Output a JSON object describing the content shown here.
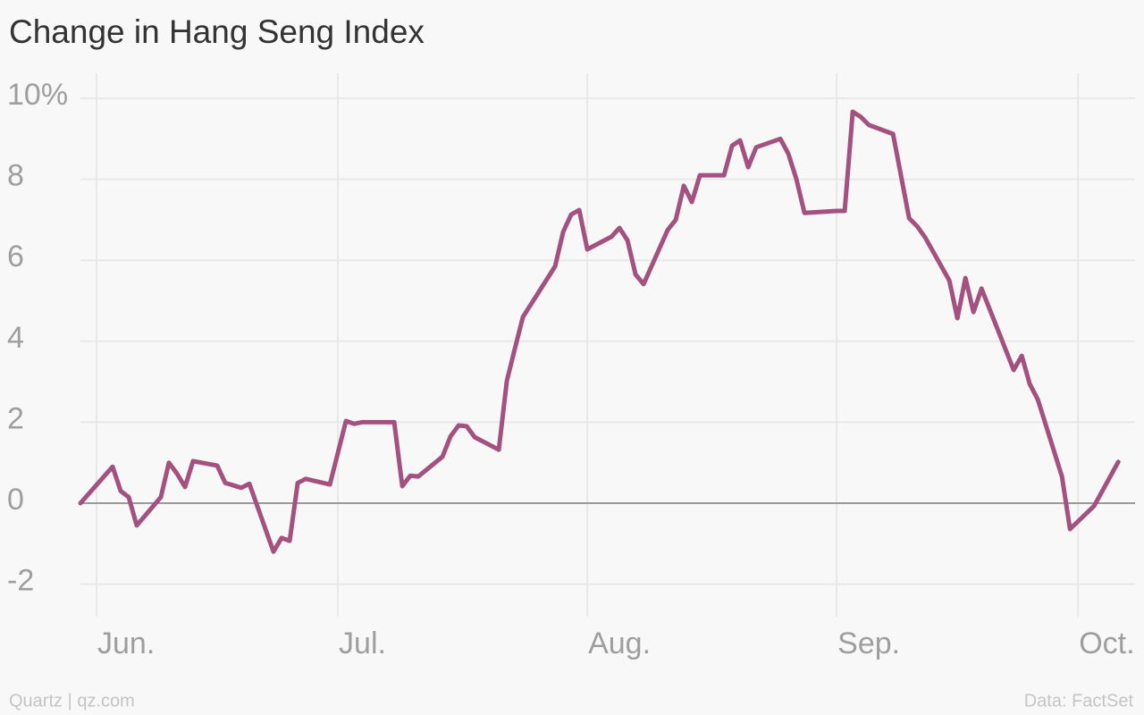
{
  "chart_data": {
    "type": "line",
    "title": "Change in Hang Seng Index",
    "x": [
      -2,
      2,
      3,
      4,
      5,
      8,
      9,
      10,
      11,
      12,
      15,
      16,
      18,
      19,
      22,
      23,
      24,
      25,
      26,
      29,
      31,
      32,
      33,
      37,
      38,
      39,
      40,
      43,
      44,
      45,
      46,
      47,
      50,
      51,
      52,
      53,
      57,
      58,
      59,
      60,
      61,
      64,
      65,
      66,
      67,
      68,
      71,
      72,
      73,
      74,
      75,
      78,
      79,
      80,
      81,
      82,
      85,
      86,
      87,
      88,
      92,
      93,
      94,
      95,
      96,
      99,
      101,
      102,
      103,
      106,
      107,
      108,
      109,
      110,
      114,
      115,
      116,
      117,
      120,
      121,
      124,
      127
    ],
    "series": [
      {
        "name": "Change in Hang Seng Index",
        "color": "#a5517f",
        "values": [
          0,
          0.9,
          0.3,
          0.15,
          -0.55,
          0.15,
          1.0,
          0.73,
          0.4,
          1.04,
          0.93,
          0.5,
          0.38,
          0.48,
          -1.2,
          -0.86,
          -0.93,
          0.5,
          0.6,
          0.46,
          2.03,
          1.96,
          2.0,
          2.0,
          0.42,
          0.68,
          0.66,
          1.15,
          1.65,
          1.92,
          1.9,
          1.63,
          1.32,
          3.02,
          3.82,
          4.6,
          5.85,
          6.7,
          7.13,
          7.24,
          6.27,
          6.58,
          6.8,
          6.49,
          5.65,
          5.41,
          6.75,
          7.0,
          7.84,
          7.44,
          8.1,
          8.1,
          8.83,
          8.96,
          8.3,
          8.79,
          9.0,
          8.63,
          8.0,
          7.17,
          7.22,
          7.22,
          9.67,
          9.54,
          9.34,
          9.12,
          7.04,
          6.84,
          6.56,
          5.5,
          4.57,
          5.56,
          4.72,
          5.3,
          3.29,
          3.64,
          2.94,
          2.56,
          0.66,
          -0.64,
          -0.07,
          1.02
        ]
      }
    ],
    "xlim": [
      -12,
      130.2
    ],
    "xticks": [
      {
        "value": 0,
        "label": "Jun."
      },
      {
        "value": 30,
        "label": "Jul."
      },
      {
        "value": 61,
        "label": "Aug."
      },
      {
        "value": 92,
        "label": "Sep."
      },
      {
        "value": 122,
        "label": "Oct."
      }
    ],
    "ylim": [
      -2.8,
      10.8
    ],
    "yticks": [
      -2,
      0,
      2,
      4,
      6,
      8,
      {
        "value": 10,
        "label": "10%"
      }
    ],
    "grid": true,
    "source": "Data: FactSet",
    "credit": "Quartz | qz.com"
  }
}
